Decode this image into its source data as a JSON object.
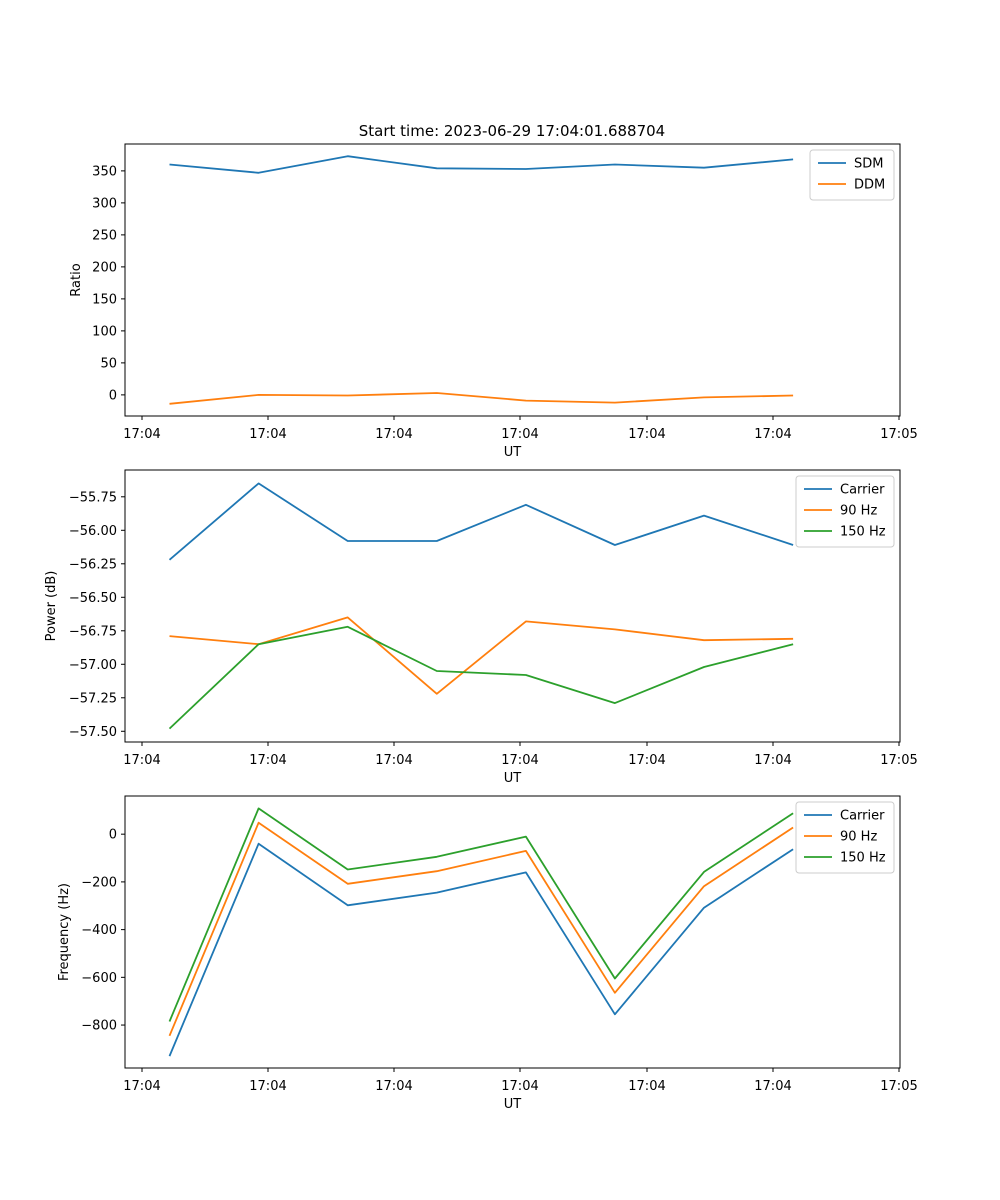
{
  "figure": {
    "title": "Start time: 2023-06-29 17:04:01.688704"
  },
  "chart_data": [
    {
      "type": "line",
      "xlabel": "UT",
      "ylabel": "Ratio",
      "x_tick_labels": [
        "17:04",
        "17:04",
        "17:04",
        "17:04",
        "17:04",
        "17:04",
        "17:05"
      ],
      "x_points": [
        1,
        2,
        3,
        4,
        5,
        6,
        7,
        8
      ],
      "xlim": [
        0.5,
        9.2
      ],
      "ylim": [
        -33,
        392
      ],
      "y_ticks": [
        0,
        50,
        100,
        150,
        200,
        250,
        300,
        350
      ],
      "grid": false,
      "legend_position": "top-right",
      "series": [
        {
          "name": "SDM",
          "color": "#1f77b4",
          "values": [
            360,
            347,
            373,
            354,
            353,
            360,
            355,
            368
          ]
        },
        {
          "name": "DDM",
          "color": "#ff7f0e",
          "values": [
            -14,
            0,
            -1,
            3,
            -9,
            -12,
            -4,
            -1
          ]
        }
      ]
    },
    {
      "type": "line",
      "xlabel": "UT",
      "ylabel": "Power (dB)",
      "x_tick_labels": [
        "17:04",
        "17:04",
        "17:04",
        "17:04",
        "17:04",
        "17:04",
        "17:05"
      ],
      "x_points": [
        1,
        2,
        3,
        4,
        5,
        6,
        7,
        8
      ],
      "xlim": [
        0.5,
        9.2
      ],
      "ylim": [
        -57.58,
        -55.55
      ],
      "y_ticks": [
        -57.5,
        -57.25,
        -57.0,
        -56.75,
        -56.5,
        -56.25,
        -56.0,
        -55.75
      ],
      "y_tick_labels": [
        "−57.50",
        "−57.25",
        "−57.00",
        "−56.75",
        "−56.50",
        "−56.25",
        "−56.00",
        "−55.75"
      ],
      "grid": false,
      "legend_position": "top-right",
      "series": [
        {
          "name": "Carrier",
          "color": "#1f77b4",
          "values": [
            -56.22,
            -55.65,
            -56.08,
            -56.08,
            -55.81,
            -56.11,
            -55.89,
            -56.11
          ]
        },
        {
          "name": "90 Hz",
          "color": "#ff7f0e",
          "values": [
            -56.79,
            -56.85,
            -56.65,
            -57.22,
            -56.68,
            -56.74,
            -56.82,
            -56.81
          ]
        },
        {
          "name": "150 Hz",
          "color": "#2ca02c",
          "values": [
            -57.48,
            -56.85,
            -56.72,
            -57.05,
            -57.08,
            -57.29,
            -57.02,
            -56.85
          ]
        }
      ]
    },
    {
      "type": "line",
      "xlabel": "UT",
      "ylabel": "Frequency (Hz)",
      "x_tick_labels": [
        "17:04",
        "17:04",
        "17:04",
        "17:04",
        "17:04",
        "17:04",
        "17:05"
      ],
      "x_points": [
        1,
        2,
        3,
        4,
        5,
        6,
        7,
        8
      ],
      "xlim": [
        0.5,
        9.2
      ],
      "ylim": [
        -980,
        160
      ],
      "y_ticks": [
        -800,
        -600,
        -400,
        -200,
        0
      ],
      "y_tick_labels": [
        "−800",
        "−600",
        "−400",
        "−200",
        "0"
      ],
      "grid": false,
      "legend_position": "top-right",
      "series": [
        {
          "name": "Carrier",
          "color": "#1f77b4",
          "values": [
            -930,
            -40,
            -298,
            -245,
            -160,
            -755,
            -308,
            -63
          ]
        },
        {
          "name": "90 Hz",
          "color": "#ff7f0e",
          "values": [
            -845,
            48,
            -208,
            -155,
            -70,
            -665,
            -218,
            28
          ]
        },
        {
          "name": "150 Hz",
          "color": "#2ca02c",
          "values": [
            -785,
            108,
            -148,
            -95,
            -10,
            -605,
            -158,
            88
          ]
        }
      ]
    }
  ]
}
